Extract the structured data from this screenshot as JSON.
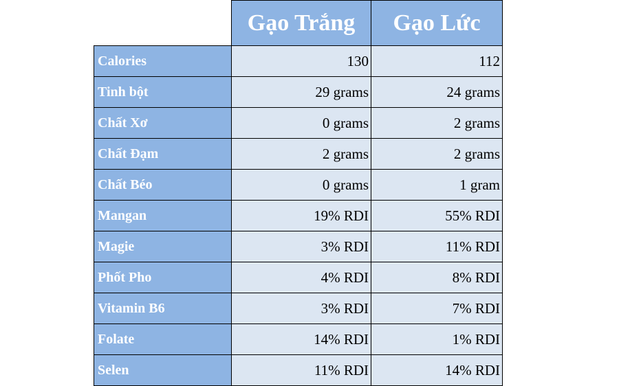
{
  "table": {
    "headers": [
      "Gạo Trắng",
      "Gạo Lức"
    ],
    "rows": [
      {
        "label": "Calories",
        "white": "130",
        "brown": "112"
      },
      {
        "label": "Tinh bột",
        "white": "29 grams",
        "brown": "24 grams"
      },
      {
        "label": "Chất Xơ",
        "white": "0 grams",
        "brown": "2 grams"
      },
      {
        "label": "Chất Đạm",
        "white": "2 grams",
        "brown": "2 grams"
      },
      {
        "label": "Chất Béo",
        "white": "0 grams",
        "brown": "1 gram"
      },
      {
        "label": "Mangan",
        "white": "19% RDI",
        "brown": "55% RDI"
      },
      {
        "label": "Magie",
        "white": "3% RDI",
        "brown": "11% RDI"
      },
      {
        "label": "Phốt Pho",
        "white": "4% RDI",
        "brown": "8% RDI"
      },
      {
        "label": "Vitamin B6",
        "white": "3% RDI",
        "brown": "7% RDI"
      },
      {
        "label": "Folate",
        "white": "14% RDI",
        "brown": "1% RDI"
      },
      {
        "label": "Selen",
        "white": "11% RDI",
        "brown": "14% RDI"
      }
    ]
  },
  "colors": {
    "header_bg": "#8eb4e3",
    "label_bg": "#8eb4e3",
    "value_bg": "#dce6f2",
    "header_text": "#ffffff",
    "border": "#000000"
  }
}
